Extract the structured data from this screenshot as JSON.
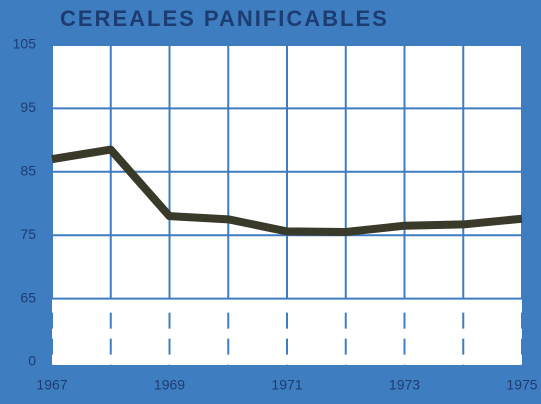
{
  "chart_data": {
    "type": "line",
    "title": "CEREALES PANIFICABLES",
    "x": [
      1967,
      1968,
      1969,
      1970,
      1971,
      1972,
      1973,
      1974,
      1975
    ],
    "series": [
      {
        "color": "#3a3a2a",
        "values": [
          87,
          88.5,
          78,
          77.5,
          75.6,
          75.5,
          76.5,
          76.7,
          77.6
        ]
      }
    ],
    "xlim": [
      1967,
      1975
    ],
    "xticks": [
      1967,
      1969,
      1971,
      1973,
      1975
    ],
    "ylim": [
      55,
      105
    ],
    "yticks": [
      65,
      75,
      85,
      95,
      105
    ],
    "ybreak_label": "0",
    "grid": true
  }
}
